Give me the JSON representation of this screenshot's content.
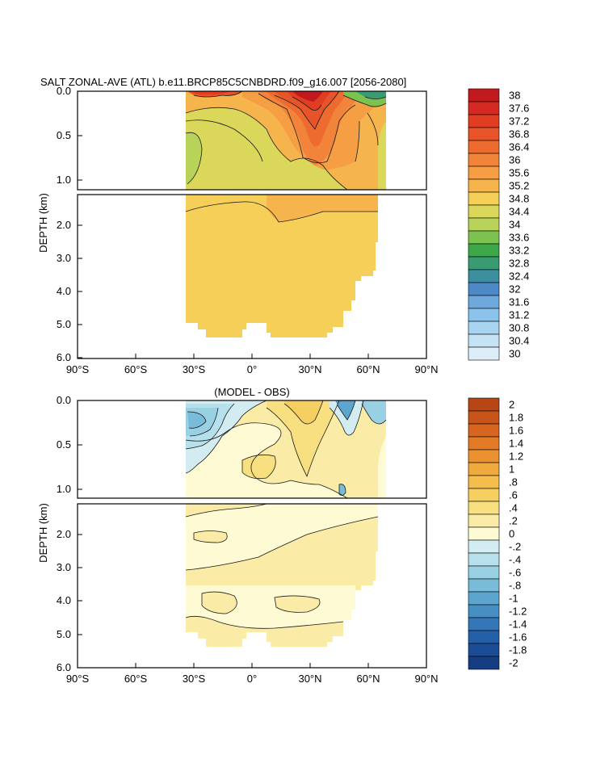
{
  "chart_data": [
    {
      "type": "heatmap",
      "title": "SALT ZONAL-AVE (ATL) b.e11.BRCP85C5CNBDRD.f09_g16.007 [2056-2080]",
      "xlabel": "",
      "ylabel": "DEPTH (km)",
      "x_ticks": [
        "90°S",
        "60°S",
        "30°S",
        "0°",
        "30°N",
        "60°N",
        "90°N"
      ],
      "x_tick_parts": [
        {
          "num": "90",
          "hem": "S"
        },
        {
          "num": "60",
          "hem": "S"
        },
        {
          "num": "30",
          "hem": "S"
        },
        {
          "num": "0",
          "hem": ""
        },
        {
          "num": "30",
          "hem": "N"
        },
        {
          "num": "60",
          "hem": "N"
        },
        {
          "num": "90",
          "hem": "N"
        }
      ],
      "y_ticks_upper": [
        "0.0",
        "0.5",
        "1.0"
      ],
      "y_ticks_lower": [
        "2.0",
        "3.0",
        "4.0",
        "5.0",
        "6.0"
      ],
      "xlim": [
        -90,
        90
      ],
      "ylim_upper_km": [
        0,
        1.1
      ],
      "ylim_lower_km": [
        1.1,
        6.0
      ],
      "colorbar": {
        "labels": [
          "38",
          "37.6",
          "37.2",
          "36.8",
          "36.4",
          "36",
          "35.6",
          "35.2",
          "34.8",
          "34.4",
          "34",
          "33.6",
          "33.2",
          "32.8",
          "32.4",
          "32",
          "31.6",
          "31.2",
          "30.8",
          "30.4",
          "30"
        ],
        "colors": [
          "#c0191e",
          "#d42a22",
          "#e03d22",
          "#e7542a",
          "#ed6b2e",
          "#f1843a",
          "#f59e43",
          "#f6b54c",
          "#f5cf57",
          "#dbd75b",
          "#b8d25a",
          "#7cc250",
          "#3da74a",
          "#3a9a72",
          "#3d8fa0",
          "#4d88c7",
          "#6fa9dc",
          "#8bc3ea",
          "#a9d4f1",
          "#c6e3f6",
          "#ddeef9"
        ]
      }
    },
    {
      "type": "heatmap",
      "title": "(MODEL - OBS)",
      "xlabel": "",
      "ylabel": "DEPTH (km)",
      "x_ticks": [
        "90°S",
        "60°S",
        "30°S",
        "0°",
        "30°N",
        "60°N",
        "90°N"
      ],
      "y_ticks_upper": [
        "0.0",
        "0.5",
        "1.0"
      ],
      "y_ticks_lower": [
        "2.0",
        "3.0",
        "4.0",
        "5.0",
        "6.0"
      ],
      "xlim": [
        -90,
        90
      ],
      "colorbar": {
        "labels": [
          "2",
          "1.8",
          "1.6",
          "1.4",
          "1.2",
          "1",
          ".8",
          ".6",
          ".4",
          ".2",
          "0",
          "-.2",
          "-.4",
          "-.6",
          "-.8",
          "-1",
          "-1.2",
          "-1.4",
          "-1.6",
          "-1.8",
          "-2"
        ],
        "colors": [
          "#b84514",
          "#c9541a",
          "#d8651e",
          "#e27a26",
          "#ea922f",
          "#f0a93c",
          "#f4be4d",
          "#f6cf61",
          "#f8df80",
          "#faeca6",
          "#fdfad4",
          "#d3ecf2",
          "#b6e0ec",
          "#98d0e4",
          "#79bcd9",
          "#5ba5cf",
          "#478ec4",
          "#3477b8",
          "#2460a8",
          "#1b4d96",
          "#153e82"
        ]
      }
    }
  ]
}
